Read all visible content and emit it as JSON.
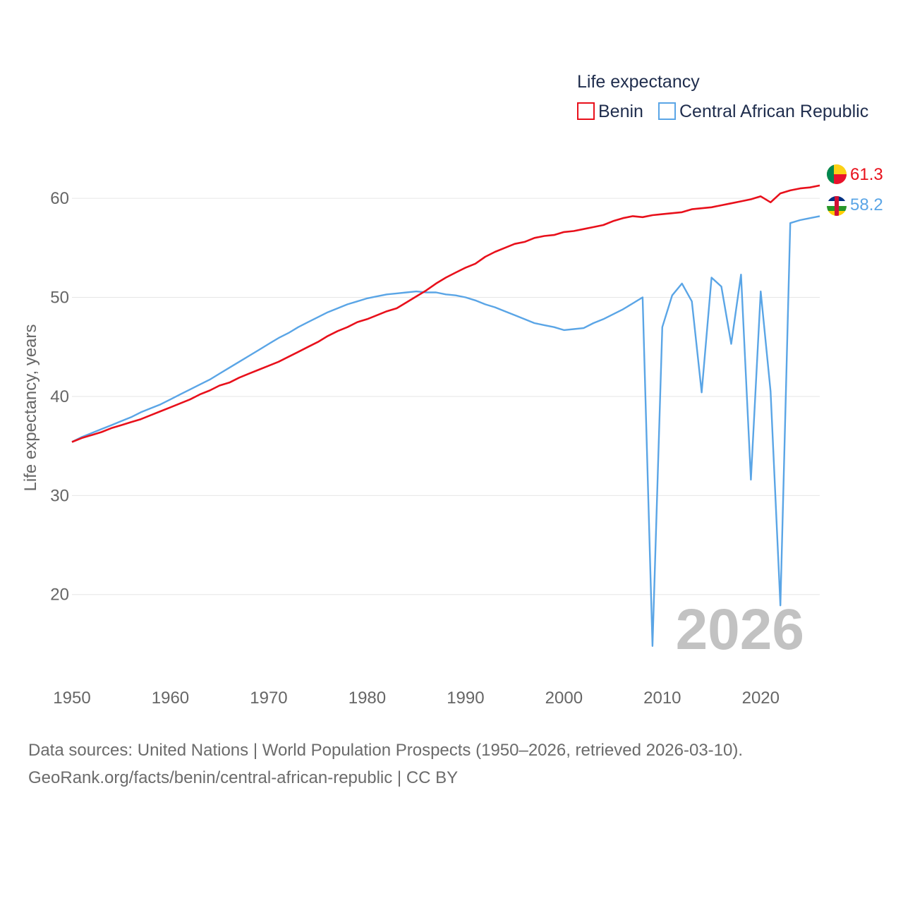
{
  "chart_data": {
    "type": "line",
    "title": "",
    "legend_title": "Life expectancy",
    "legend_position": "top-right",
    "ylabel": "Life expectancy, years",
    "xlabel": "",
    "xlim": [
      1950,
      2026
    ],
    "ylim": [
      13.5,
      63.5
    ],
    "x_ticks": [
      1950,
      1960,
      1970,
      1980,
      1990,
      2000,
      2010,
      2020
    ],
    "y_ticks": [
      20,
      30,
      40,
      50,
      60
    ],
    "grid": true,
    "current_year": "2026",
    "x": [
      1950,
      1951,
      1952,
      1953,
      1954,
      1955,
      1956,
      1957,
      1958,
      1959,
      1960,
      1961,
      1962,
      1963,
      1964,
      1965,
      1966,
      1967,
      1968,
      1969,
      1970,
      1971,
      1972,
      1973,
      1974,
      1975,
      1976,
      1977,
      1978,
      1979,
      1980,
      1981,
      1982,
      1983,
      1984,
      1985,
      1986,
      1987,
      1988,
      1989,
      1990,
      1991,
      1992,
      1993,
      1994,
      1995,
      1996,
      1997,
      1998,
      1999,
      2000,
      2001,
      2002,
      2003,
      2004,
      2005,
      2006,
      2007,
      2008,
      2009,
      2010,
      2011,
      2012,
      2013,
      2014,
      2015,
      2016,
      2017,
      2018,
      2019,
      2020,
      2021,
      2022,
      2023,
      2024,
      2025,
      2026
    ],
    "series": [
      {
        "name": "Benin",
        "color": "#e8101b",
        "end_label": "61.3",
        "values": [
          35.4,
          35.8,
          36.1,
          36.4,
          36.8,
          37.1,
          37.4,
          37.7,
          38.1,
          38.5,
          38.9,
          39.3,
          39.7,
          40.2,
          40.6,
          41.1,
          41.4,
          41.9,
          42.3,
          42.7,
          43.1,
          43.5,
          44.0,
          44.5,
          45.0,
          45.5,
          46.1,
          46.6,
          47.0,
          47.5,
          47.8,
          48.2,
          48.6,
          48.9,
          49.5,
          50.1,
          50.7,
          51.4,
          52.0,
          52.5,
          53.0,
          53.4,
          54.1,
          54.6,
          55.0,
          55.4,
          55.6,
          56.0,
          56.2,
          56.3,
          56.6,
          56.7,
          56.9,
          57.1,
          57.3,
          57.7,
          58.0,
          58.2,
          58.1,
          58.3,
          58.4,
          58.5,
          58.6,
          58.9,
          59.0,
          59.1,
          59.3,
          59.5,
          59.7,
          59.9,
          60.2,
          59.6,
          60.5,
          60.8,
          61.0,
          61.1,
          61.3
        ]
      },
      {
        "name": "Central African Republic",
        "color": "#5aa5e6",
        "end_label": "58.2",
        "values": [
          35.4,
          35.9,
          36.3,
          36.7,
          37.1,
          37.5,
          37.9,
          38.4,
          38.8,
          39.2,
          39.7,
          40.2,
          40.7,
          41.2,
          41.7,
          42.3,
          42.9,
          43.5,
          44.1,
          44.7,
          45.3,
          45.9,
          46.4,
          47.0,
          47.5,
          48.0,
          48.5,
          48.9,
          49.3,
          49.6,
          49.9,
          50.1,
          50.3,
          50.4,
          50.5,
          50.6,
          50.5,
          50.5,
          50.3,
          50.2,
          50.0,
          49.7,
          49.3,
          49.0,
          48.6,
          48.2,
          47.8,
          47.4,
          47.2,
          47.0,
          46.7,
          46.8,
          46.9,
          47.4,
          47.8,
          48.3,
          48.8,
          49.4,
          50.0,
          14.8,
          47.0,
          50.2,
          51.4,
          49.6,
          40.4,
          52.0,
          51.1,
          45.3,
          52.3,
          31.6,
          50.6,
          40.5,
          18.9,
          57.5,
          57.8,
          58.0,
          58.2
        ]
      }
    ]
  },
  "source": {
    "line1": "Data sources: United Nations | World Population Prospects (1950–2026, retrieved 2026-03-10).",
    "line2": "GeoRank.org/facts/benin/central-african-republic | CC BY"
  },
  "flags": {
    "benin_icon": "benin-flag-icon",
    "car_icon": "central-african-republic-flag-icon"
  }
}
